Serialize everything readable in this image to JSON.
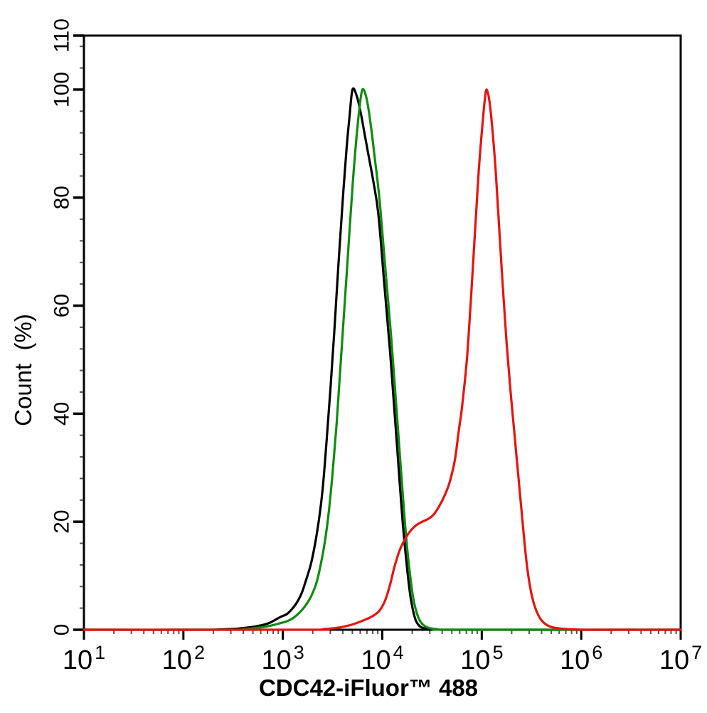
{
  "window": {
    "background": "#ffffff"
  },
  "chart_data": {
    "type": "line",
    "subtype": "flow-cytometry-overlay-histogram",
    "title": "",
    "xlabel": "CDC42-iFluor™ 488",
    "ylabel": "Count  (%)",
    "x_scale": "log10",
    "x_log_range": [
      1,
      7
    ],
    "x_tick_base": "10",
    "x_major_exponents": [
      1,
      2,
      3,
      4,
      5,
      6,
      7
    ],
    "ylim": [
      0,
      110
    ],
    "y_major_ticks": [
      0,
      20,
      40,
      60,
      80,
      100,
      110
    ],
    "y_minor_step": 4,
    "grid": false,
    "legend": null,
    "axis_color": "#000000",
    "minor_tick_color": "#555555",
    "series": [
      {
        "name": "black-curve",
        "color": "#000000",
        "peak": {
          "x_log10": 3.7,
          "percent": 100
        },
        "points": [
          [
            1.0,
            0
          ],
          [
            2.2,
            0
          ],
          [
            2.35,
            0.05
          ],
          [
            2.5,
            0.15
          ],
          [
            2.62,
            0.35
          ],
          [
            2.72,
            0.6
          ],
          [
            2.8,
            0.9
          ],
          [
            2.87,
            1.3
          ],
          [
            2.93,
            1.9
          ],
          [
            2.98,
            2.4
          ],
          [
            3.04,
            2.9
          ],
          [
            3.09,
            3.8
          ],
          [
            3.14,
            5.0
          ],
          [
            3.19,
            6.8
          ],
          [
            3.23,
            9.0
          ],
          [
            3.28,
            12.0
          ],
          [
            3.32,
            15.5
          ],
          [
            3.36,
            20.0
          ],
          [
            3.4,
            26.0
          ],
          [
            3.44,
            35.0
          ],
          [
            3.48,
            45.0
          ],
          [
            3.52,
            56.0
          ],
          [
            3.56,
            68.0
          ],
          [
            3.6,
            79.0
          ],
          [
            3.64,
            89.0
          ],
          [
            3.67,
            95.0
          ],
          [
            3.7,
            100.0
          ],
          [
            3.74,
            99.0
          ],
          [
            3.78,
            96.0
          ],
          [
            3.82,
            92.0
          ],
          [
            3.86,
            88.0
          ],
          [
            3.91,
            83.0
          ],
          [
            3.96,
            77.0
          ],
          [
            4.02,
            64.0
          ],
          [
            4.08,
            51.0
          ],
          [
            4.12,
            41.0
          ],
          [
            4.16,
            31.0
          ],
          [
            4.2,
            21.0
          ],
          [
            4.24,
            13.0
          ],
          [
            4.28,
            6.5
          ],
          [
            4.31,
            3.5
          ],
          [
            4.34,
            1.6
          ],
          [
            4.38,
            0.6
          ],
          [
            4.44,
            0.2
          ],
          [
            4.55,
            0.05
          ],
          [
            4.8,
            0
          ],
          [
            7.0,
            0
          ]
        ]
      },
      {
        "name": "green-curve",
        "color": "#0f8c0f",
        "peak": {
          "x_log10": 3.8,
          "percent": 100
        },
        "points": [
          [
            1.0,
            0
          ],
          [
            2.45,
            0
          ],
          [
            2.6,
            0.1
          ],
          [
            2.72,
            0.3
          ],
          [
            2.82,
            0.55
          ],
          [
            2.9,
            0.85
          ],
          [
            2.97,
            1.2
          ],
          [
            3.03,
            1.5
          ],
          [
            3.09,
            2.0
          ],
          [
            3.14,
            2.7
          ],
          [
            3.19,
            3.6
          ],
          [
            3.24,
            4.8
          ],
          [
            3.29,
            6.4
          ],
          [
            3.34,
            8.8
          ],
          [
            3.38,
            12.0
          ],
          [
            3.42,
            16.0
          ],
          [
            3.46,
            21.5
          ],
          [
            3.5,
            29.0
          ],
          [
            3.54,
            38.0
          ],
          [
            3.58,
            49.0
          ],
          [
            3.62,
            60.0
          ],
          [
            3.66,
            71.0
          ],
          [
            3.7,
            82.0
          ],
          [
            3.74,
            91.0
          ],
          [
            3.77,
            96.5
          ],
          [
            3.8,
            100.0
          ],
          [
            3.84,
            98.5
          ],
          [
            3.88,
            94.0
          ],
          [
            3.92,
            88.0
          ],
          [
            3.97,
            80.0
          ],
          [
            4.03,
            67.0
          ],
          [
            4.09,
            54.0
          ],
          [
            4.13,
            44.0
          ],
          [
            4.17,
            34.0
          ],
          [
            4.21,
            24.0
          ],
          [
            4.25,
            15.0
          ],
          [
            4.29,
            8.5
          ],
          [
            4.32,
            5.0
          ],
          [
            4.36,
            2.4
          ],
          [
            4.4,
            1.1
          ],
          [
            4.46,
            0.4
          ],
          [
            4.55,
            0.1
          ],
          [
            4.75,
            0
          ],
          [
            7.0,
            0
          ]
        ]
      },
      {
        "name": "red-curve",
        "color": "#e8120e",
        "peak": {
          "x_log10": 5.05,
          "percent": 100
        },
        "shoulder": {
          "x_log10": 4.45,
          "percent": 20
        },
        "points": [
          [
            1.0,
            0
          ],
          [
            3.25,
            0
          ],
          [
            3.4,
            0.1
          ],
          [
            3.52,
            0.3
          ],
          [
            3.62,
            0.6
          ],
          [
            3.72,
            1.1
          ],
          [
            3.82,
            1.8
          ],
          [
            3.9,
            2.5
          ],
          [
            3.97,
            3.5
          ],
          [
            4.03,
            5.5
          ],
          [
            4.08,
            8.5
          ],
          [
            4.12,
            11.5
          ],
          [
            4.17,
            14.5
          ],
          [
            4.22,
            16.5
          ],
          [
            4.27,
            18.0
          ],
          [
            4.33,
            19.2
          ],
          [
            4.39,
            19.9
          ],
          [
            4.45,
            20.4
          ],
          [
            4.51,
            21.2
          ],
          [
            4.57,
            22.8
          ],
          [
            4.63,
            25.0
          ],
          [
            4.68,
            27.5
          ],
          [
            4.73,
            31.5
          ],
          [
            4.77,
            37.0
          ],
          [
            4.8,
            41.0
          ],
          [
            4.85,
            50.0
          ],
          [
            4.89,
            61.0
          ],
          [
            4.93,
            73.0
          ],
          [
            4.97,
            85.0
          ],
          [
            5.0,
            92.0
          ],
          [
            5.03,
            98.0
          ],
          [
            5.05,
            100.0
          ],
          [
            5.08,
            97.5
          ],
          [
            5.11,
            92.0
          ],
          [
            5.14,
            85.0
          ],
          [
            5.17,
            76.0
          ],
          [
            5.21,
            64.0
          ],
          [
            5.25,
            53.0
          ],
          [
            5.29,
            44.0
          ],
          [
            5.33,
            36.0
          ],
          [
            5.37,
            28.0
          ],
          [
            5.41,
            20.0
          ],
          [
            5.45,
            12.5
          ],
          [
            5.49,
            7.5
          ],
          [
            5.53,
            4.5
          ],
          [
            5.58,
            2.3
          ],
          [
            5.63,
            1.2
          ],
          [
            5.7,
            0.5
          ],
          [
            5.8,
            0.2
          ],
          [
            5.95,
            0.05
          ],
          [
            6.15,
            0
          ],
          [
            7.0,
            0
          ]
        ]
      }
    ]
  }
}
